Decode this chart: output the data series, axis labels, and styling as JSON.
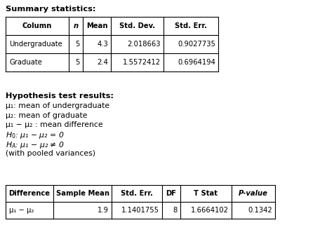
{
  "summary_title": "Summary statistics:",
  "summary_headers": [
    "Column",
    "n",
    "Mean",
    "Std. Dev.",
    "Std. Err."
  ],
  "summary_rows": [
    [
      "Undergraduate",
      "5",
      "4.3",
      "2.018663",
      "0.9027735"
    ],
    [
      "Graduate",
      "5",
      "2.4",
      "1.5572412",
      "0.6964194"
    ]
  ],
  "hypothesis_title": "Hypothesis test results:",
  "hypothesis_lines": [
    "μ₁: mean of undergraduate",
    "μ₂: mean of graduate",
    "μ₁ − μ₂ : mean difference",
    "H0italic",
    "HAitalic",
    "(with pooled variances)"
  ],
  "results_headers": [
    "Difference",
    "Sample Mean",
    "Std. Err.",
    "DF",
    "T Stat",
    "P-value"
  ],
  "results_rows": [
    [
      "μ₁ − μ₂",
      "1.9",
      "1.1401755",
      "8",
      "1.6664102",
      "0.1342"
    ]
  ],
  "bg_color": "#ffffff",
  "text_color": "#000000",
  "fig_w": 4.66,
  "fig_h": 3.41,
  "dpi": 100
}
